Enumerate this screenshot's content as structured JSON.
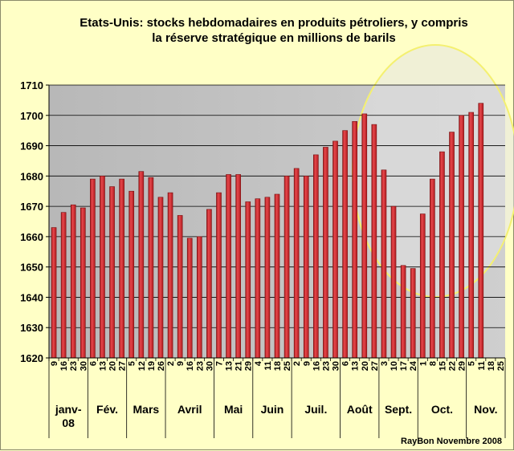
{
  "chart_data": {
    "type": "bar",
    "title_lines": [
      "Etats-Unis: stocks hebdomadaires en produits pétroliers, y compris",
      "la réserve stratégique  en millions de barils"
    ],
    "xlabel": "",
    "ylabel": "",
    "ylim": [
      1620,
      1710
    ],
    "yticks": [
      1620,
      1630,
      1640,
      1650,
      1660,
      1670,
      1680,
      1690,
      1700,
      1710
    ],
    "grid": true,
    "legend": "none",
    "categories": [
      "9",
      "16",
      "23",
      "30",
      "6",
      "13",
      "20",
      "27",
      "5",
      "12",
      "19",
      "26",
      "2",
      "9",
      "16",
      "23",
      "30",
      "7",
      "13",
      "21",
      "29",
      "4",
      "11",
      "18",
      "25",
      "2",
      "9",
      "16",
      "23",
      "30",
      "6",
      "13",
      "20",
      "27",
      "3",
      "10",
      "17",
      "24",
      "1",
      "8",
      "15",
      "22",
      "29",
      "5",
      "11",
      "18",
      "25"
    ],
    "values": [
      1663,
      1668,
      1670.5,
      1669.5,
      1679,
      1680,
      1676.5,
      1679,
      1675,
      1681.5,
      1679.5,
      1673,
      1674.5,
      1667,
      1659.5,
      1660,
      1669,
      1674.5,
      1680.5,
      1680.5,
      1671.5,
      1672.5,
      1673,
      1674,
      1680,
      1682.5,
      1680,
      1687,
      1689.5,
      1691.5,
      1695,
      1698,
      1700.5,
      1697,
      1682,
      1670,
      1650.5,
      1649.5,
      1667.5,
      1679,
      1688,
      1694.5,
      1700,
      1701,
      1704,
      null,
      null
    ],
    "month_groups": [
      {
        "label_lines": [
          "janv-",
          "08"
        ],
        "start": 0,
        "count": 4
      },
      {
        "label_lines": [
          "Fév."
        ],
        "start": 4,
        "count": 4
      },
      {
        "label_lines": [
          "Mars"
        ],
        "start": 8,
        "count": 4
      },
      {
        "label_lines": [
          "Avril"
        ],
        "start": 12,
        "count": 5
      },
      {
        "label_lines": [
          "Mai"
        ],
        "start": 17,
        "count": 4
      },
      {
        "label_lines": [
          "Juin"
        ],
        "start": 21,
        "count": 4
      },
      {
        "label_lines": [
          "Juil."
        ],
        "start": 25,
        "count": 5
      },
      {
        "label_lines": [
          "Août"
        ],
        "start": 30,
        "count": 4
      },
      {
        "label_lines": [
          "Sept."
        ],
        "start": 34,
        "count": 4
      },
      {
        "label_lines": [
          "Oct."
        ],
        "start": 38,
        "count": 5
      },
      {
        "label_lines": [
          "Nov."
        ],
        "start": 43,
        "count": 4
      }
    ],
    "annotation": "RayBon  Novembre  2008",
    "colors": {
      "plot_bg": "#c0c0c0",
      "bar": "#d42a2e",
      "bar_edge": "#7a1010",
      "highlight_ellipse": "#f4f070",
      "highlight_fill": "#e4e4e4"
    }
  }
}
